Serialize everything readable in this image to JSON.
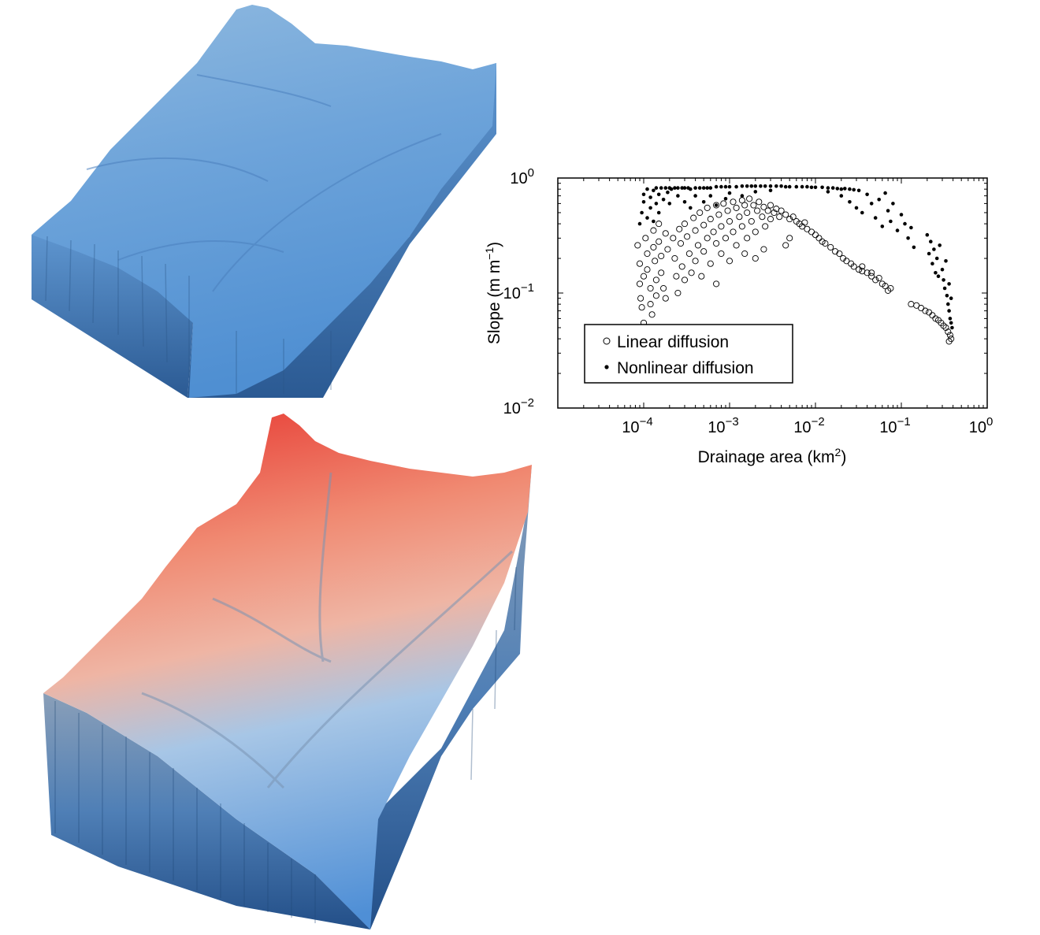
{
  "chart_data": {
    "type": "scatter",
    "xlabel": {
      "text": "Drainage area (km",
      "sup": "2",
      "tail": ")"
    },
    "ylabel": {
      "text": "Slope (m m",
      "sup": "−1",
      "tail": ")"
    },
    "xscale": "log",
    "yscale": "log",
    "xlim": [
      1e-05,
      1
    ],
    "ylim": [
      0.01,
      1
    ],
    "x_ticks": [
      {
        "base": "10",
        "exp": "−4",
        "value": 0.0001
      },
      {
        "base": "10",
        "exp": "−3",
        "value": 0.001
      },
      {
        "base": "10",
        "exp": "−2",
        "value": 0.01
      },
      {
        "base": "10",
        "exp": "−1",
        "value": 0.1
      },
      {
        "base": "10",
        "exp": "0",
        "value": 1
      }
    ],
    "y_ticks": [
      {
        "base": "10",
        "exp": "−2",
        "value": 0.01
      },
      {
        "base": "10",
        "exp": "−1",
        "value": 0.1
      },
      {
        "base": "10",
        "exp": "0",
        "value": 1
      }
    ],
    "legend_position": "lower-left",
    "grid": false,
    "series": [
      {
        "name": "Linear diffusion",
        "marker": "open-circle",
        "color": "#000000",
        "points": [
          [
            8.5e-05,
            0.26
          ],
          [
            9e-05,
            0.18
          ],
          [
            9e-05,
            0.12
          ],
          [
            9.2e-05,
            0.09
          ],
          [
            9.5e-05,
            0.075
          ],
          [
            0.0001,
            0.055
          ],
          [
            0.0001,
            0.14
          ],
          [
            0.000105,
            0.3
          ],
          [
            0.00011,
            0.22
          ],
          [
            0.00011,
            0.16
          ],
          [
            0.00012,
            0.11
          ],
          [
            0.00012,
            0.08
          ],
          [
            0.000125,
            0.065
          ],
          [
            0.00013,
            0.35
          ],
          [
            0.00013,
            0.25
          ],
          [
            0.000135,
            0.19
          ],
          [
            0.00014,
            0.13
          ],
          [
            0.00014,
            0.095
          ],
          [
            0.00015,
            0.4
          ],
          [
            0.00015,
            0.28
          ],
          [
            0.00016,
            0.21
          ],
          [
            0.00016,
            0.15
          ],
          [
            0.00017,
            0.11
          ],
          [
            0.00018,
            0.33
          ],
          [
            0.00018,
            0.09
          ],
          [
            0.00019,
            0.24
          ],
          [
            0.00022,
            0.3
          ],
          [
            0.00023,
            0.2
          ],
          [
            0.00024,
            0.14
          ],
          [
            0.00025,
            0.1
          ],
          [
            0.00026,
            0.36
          ],
          [
            0.00027,
            0.27
          ],
          [
            0.00028,
            0.17
          ],
          [
            0.0003,
            0.4
          ],
          [
            0.0003,
            0.13
          ],
          [
            0.00032,
            0.31
          ],
          [
            0.00034,
            0.22
          ],
          [
            0.00036,
            0.15
          ],
          [
            0.00038,
            0.45
          ],
          [
            0.0004,
            0.35
          ],
          [
            0.0004,
            0.19
          ],
          [
            0.00043,
            0.26
          ],
          [
            0.00045,
            0.5
          ],
          [
            0.00047,
            0.14
          ],
          [
            0.0005,
            0.39
          ],
          [
            0.0005,
            0.23
          ],
          [
            0.00055,
            0.3
          ],
          [
            0.00055,
            0.55
          ],
          [
            0.0006,
            0.44
          ],
          [
            0.0006,
            0.18
          ],
          [
            0.00065,
            0.34
          ],
          [
            0.0007,
            0.58
          ],
          [
            0.0007,
            0.27
          ],
          [
            0.0007,
            0.12
          ],
          [
            0.00075,
            0.48
          ],
          [
            0.0008,
            0.38
          ],
          [
            0.0008,
            0.22
          ],
          [
            0.00085,
            0.6
          ],
          [
            0.0009,
            0.3
          ],
          [
            0.00095,
            0.52
          ],
          [
            0.001,
            0.42
          ],
          [
            0.001,
            0.19
          ],
          [
            0.0011,
            0.62
          ],
          [
            0.0011,
            0.34
          ],
          [
            0.0012,
            0.55
          ],
          [
            0.0012,
            0.26
          ],
          [
            0.0013,
            0.46
          ],
          [
            0.0014,
            0.64
          ],
          [
            0.0014,
            0.38
          ],
          [
            0.0015,
            0.58
          ],
          [
            0.0016,
            0.3
          ],
          [
            0.0016,
            0.5
          ],
          [
            0.0017,
            0.66
          ],
          [
            0.0018,
            0.42
          ],
          [
            0.0019,
            0.58
          ],
          [
            0.002,
            0.34
          ],
          [
            0.002,
            0.2
          ],
          [
            0.0021,
            0.52
          ],
          [
            0.0022,
            0.62
          ],
          [
            0.0024,
            0.46
          ],
          [
            0.0025,
            0.56
          ],
          [
            0.0026,
            0.38
          ],
          [
            0.0028,
            0.52
          ],
          [
            0.003,
            0.58
          ],
          [
            0.003,
            0.44
          ],
          [
            0.0033,
            0.5
          ],
          [
            0.0035,
            0.54
          ],
          [
            0.0038,
            0.46
          ],
          [
            0.004,
            0.52
          ],
          [
            0.0045,
            0.48
          ],
          [
            0.005,
            0.44
          ],
          [
            0.0055,
            0.46
          ],
          [
            0.006,
            0.42
          ],
          [
            0.0065,
            0.4
          ],
          [
            0.007,
            0.38
          ],
          [
            0.0075,
            0.41
          ],
          [
            0.008,
            0.36
          ],
          [
            0.009,
            0.34
          ],
          [
            0.01,
            0.32
          ],
          [
            0.011,
            0.3
          ],
          [
            0.012,
            0.28
          ],
          [
            0.013,
            0.27
          ],
          [
            0.015,
            0.25
          ],
          [
            0.017,
            0.23
          ],
          [
            0.019,
            0.22
          ],
          [
            0.021,
            0.2
          ],
          [
            0.023,
            0.19
          ],
          [
            0.026,
            0.18
          ],
          [
            0.028,
            0.17
          ],
          [
            0.032,
            0.16
          ],
          [
            0.035,
            0.155
          ],
          [
            0.04,
            0.15
          ],
          [
            0.045,
            0.14
          ],
          [
            0.05,
            0.13
          ],
          [
            0.06,
            0.12
          ],
          [
            0.065,
            0.115
          ],
          [
            0.07,
            0.105
          ],
          [
            0.075,
            0.11
          ],
          [
            0.035,
            0.17
          ],
          [
            0.045,
            0.15
          ],
          [
            0.055,
            0.135
          ],
          [
            0.13,
            0.08
          ],
          [
            0.15,
            0.078
          ],
          [
            0.17,
            0.074
          ],
          [
            0.19,
            0.07
          ],
          [
            0.21,
            0.068
          ],
          [
            0.23,
            0.064
          ],
          [
            0.25,
            0.06
          ],
          [
            0.27,
            0.058
          ],
          [
            0.29,
            0.055
          ],
          [
            0.31,
            0.052
          ],
          [
            0.33,
            0.05
          ],
          [
            0.35,
            0.046
          ],
          [
            0.37,
            0.043
          ],
          [
            0.38,
            0.04
          ],
          [
            0.36,
            0.038
          ],
          [
            0.0015,
            0.22
          ],
          [
            0.0025,
            0.24
          ],
          [
            0.005,
            0.3
          ],
          [
            0.0045,
            0.26
          ]
        ]
      },
      {
        "name": "Nonlinear diffusion",
        "marker": "dot",
        "color": "#000000",
        "points": [
          [
            9e-05,
            0.4
          ],
          [
            9.5e-05,
            0.5
          ],
          [
            0.0001,
            0.62
          ],
          [
            0.0001,
            0.72
          ],
          [
            0.00011,
            0.45
          ],
          [
            0.00011,
            0.8
          ],
          [
            0.00012,
            0.55
          ],
          [
            0.00012,
            0.68
          ],
          [
            0.00013,
            0.78
          ],
          [
            0.00013,
            0.42
          ],
          [
            0.00014,
            0.6
          ],
          [
            0.00014,
            0.82
          ],
          [
            0.00015,
            0.72
          ],
          [
            0.00015,
            0.5
          ],
          [
            0.00016,
            0.82
          ],
          [
            0.00017,
            0.65
          ],
          [
            0.00018,
            0.82
          ],
          [
            0.00019,
            0.75
          ],
          [
            0.0002,
            0.82
          ],
          [
            0.0002,
            0.6
          ],
          [
            0.00021,
            0.8
          ],
          [
            0.00023,
            0.82
          ],
          [
            0.00025,
            0.82
          ],
          [
            0.00025,
            0.7
          ],
          [
            0.00028,
            0.82
          ],
          [
            0.0003,
            0.82
          ],
          [
            0.0003,
            0.62
          ],
          [
            0.00033,
            0.82
          ],
          [
            0.00035,
            0.8
          ],
          [
            0.00035,
            0.55
          ],
          [
            0.0004,
            0.82
          ],
          [
            0.0004,
            0.7
          ],
          [
            0.00045,
            0.82
          ],
          [
            0.0005,
            0.82
          ],
          [
            0.0005,
            0.62
          ],
          [
            0.00055,
            0.82
          ],
          [
            0.0006,
            0.82
          ],
          [
            0.0006,
            0.7
          ],
          [
            0.0007,
            0.84
          ],
          [
            0.0007,
            0.58
          ],
          [
            0.0008,
            0.84
          ],
          [
            0.0009,
            0.84
          ],
          [
            0.0009,
            0.66
          ],
          [
            0.001,
            0.84
          ],
          [
            0.001,
            0.74
          ],
          [
            0.0012,
            0.84
          ],
          [
            0.0014,
            0.85
          ],
          [
            0.0014,
            0.7
          ],
          [
            0.0016,
            0.85
          ],
          [
            0.0018,
            0.85
          ],
          [
            0.002,
            0.85
          ],
          [
            0.002,
            0.76
          ],
          [
            0.0023,
            0.85
          ],
          [
            0.0026,
            0.85
          ],
          [
            0.003,
            0.85
          ],
          [
            0.003,
            0.78
          ],
          [
            0.0035,
            0.85
          ],
          [
            0.004,
            0.85
          ],
          [
            0.0045,
            0.84
          ],
          [
            0.005,
            0.84
          ],
          [
            0.006,
            0.84
          ],
          [
            0.007,
            0.84
          ],
          [
            0.008,
            0.84
          ],
          [
            0.009,
            0.83
          ],
          [
            0.01,
            0.83
          ],
          [
            0.012,
            0.83
          ],
          [
            0.014,
            0.82
          ],
          [
            0.016,
            0.82
          ],
          [
            0.018,
            0.81
          ],
          [
            0.02,
            0.8
          ],
          [
            0.022,
            0.81
          ],
          [
            0.025,
            0.8
          ],
          [
            0.028,
            0.79
          ],
          [
            0.032,
            0.78
          ],
          [
            0.014,
            0.76
          ],
          [
            0.02,
            0.7
          ],
          [
            0.025,
            0.62
          ],
          [
            0.03,
            0.55
          ],
          [
            0.035,
            0.5
          ],
          [
            0.04,
            0.72
          ],
          [
            0.045,
            0.6
          ],
          [
            0.05,
            0.45
          ],
          [
            0.055,
            0.65
          ],
          [
            0.06,
            0.38
          ],
          [
            0.065,
            0.74
          ],
          [
            0.07,
            0.52
          ],
          [
            0.075,
            0.42
          ],
          [
            0.08,
            0.6
          ],
          [
            0.09,
            0.35
          ],
          [
            0.1,
            0.48
          ],
          [
            0.11,
            0.4
          ],
          [
            0.12,
            0.3
          ],
          [
            0.13,
            0.37
          ],
          [
            0.14,
            0.25
          ],
          [
            0.2,
            0.32
          ],
          [
            0.21,
            0.22
          ],
          [
            0.22,
            0.28
          ],
          [
            0.23,
            0.18
          ],
          [
            0.24,
            0.24
          ],
          [
            0.25,
            0.15
          ],
          [
            0.26,
            0.2
          ],
          [
            0.27,
            0.14
          ],
          [
            0.28,
            0.26
          ],
          [
            0.3,
            0.16
          ],
          [
            0.31,
            0.13
          ],
          [
            0.32,
            0.11
          ],
          [
            0.33,
            0.19
          ],
          [
            0.34,
            0.095
          ],
          [
            0.35,
            0.08
          ],
          [
            0.36,
            0.07
          ],
          [
            0.37,
            0.06
          ],
          [
            0.38,
            0.055
          ],
          [
            0.39,
            0.05
          ],
          [
            0.38,
            0.09
          ],
          [
            0.36,
            0.12
          ]
        ]
      }
    ]
  }
}
